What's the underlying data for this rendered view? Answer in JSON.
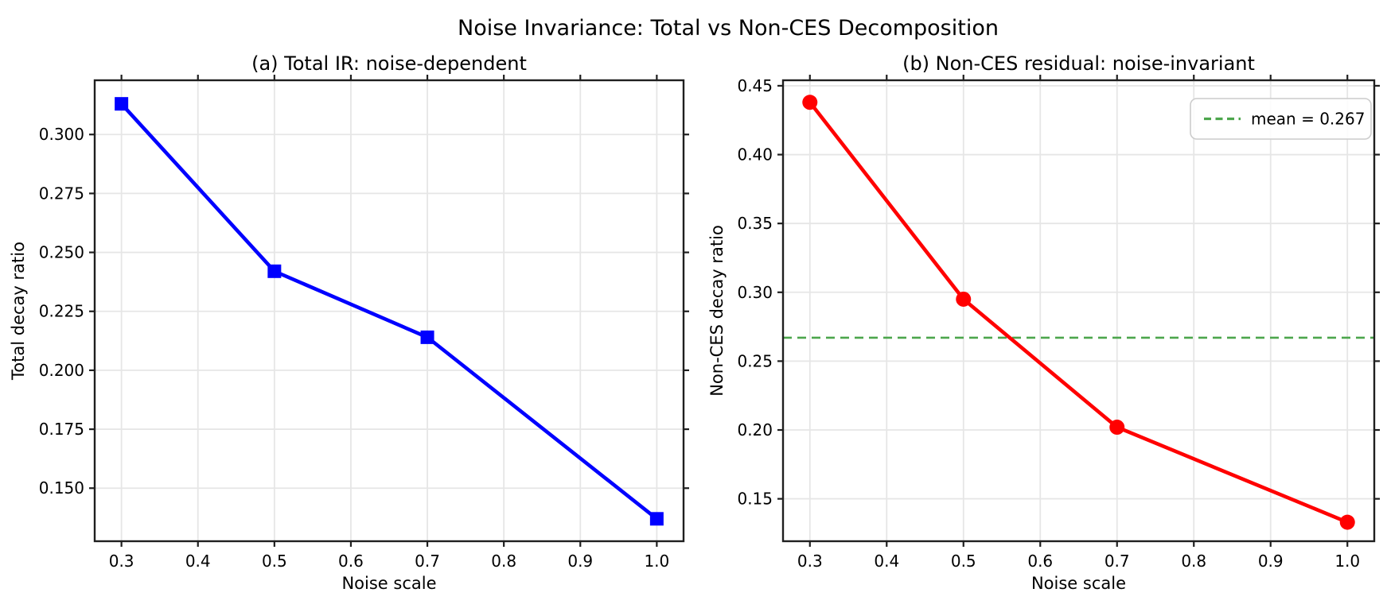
{
  "figure": {
    "title": "Noise Invariance: Total vs Non-CES Decomposition",
    "background": "#ffffff",
    "text_color": "#000000",
    "grid_color": "#e6e6e6",
    "spine_color": "#1f1f1f"
  },
  "chart_data": [
    {
      "type": "line",
      "title": "(a) Total IR: noise-dependent",
      "xlabel": "Noise scale",
      "ylabel": "Total decay ratio",
      "x": [
        0.3,
        0.5,
        0.7,
        1.0
      ],
      "values": [
        0.313,
        0.242,
        0.214,
        0.137
      ],
      "line_color": "#0000ff",
      "marker": "square",
      "xlim": [
        0.265,
        1.035
      ],
      "ylim": [
        0.1275,
        0.323
      ],
      "grid": true,
      "xticks": {
        "values": [
          0.3,
          0.4,
          0.5,
          0.6,
          0.7,
          0.8,
          0.9,
          1.0
        ],
        "labels": [
          "0.3",
          "0.4",
          "0.5",
          "0.6",
          "0.7",
          "0.8",
          "0.9",
          "1.0"
        ]
      },
      "yticks": {
        "values": [
          0.15,
          0.175,
          0.2,
          0.225,
          0.25,
          0.275,
          0.3
        ],
        "labels": [
          "0.150",
          "0.175",
          "0.200",
          "0.225",
          "0.250",
          "0.275",
          "0.300"
        ]
      },
      "mean_line": null,
      "legend": null
    },
    {
      "type": "line",
      "title": "(b) Non-CES residual: noise-invariant",
      "xlabel": "Noise scale",
      "ylabel": "Non-CES decay ratio",
      "x": [
        0.3,
        0.5,
        0.7,
        1.0
      ],
      "values": [
        0.438,
        0.295,
        0.202,
        0.133
      ],
      "line_color": "#ff0000",
      "marker": "circle",
      "xlim": [
        0.265,
        1.035
      ],
      "ylim": [
        0.1192,
        0.454
      ],
      "grid": true,
      "xticks": {
        "values": [
          0.3,
          0.4,
          0.5,
          0.6,
          0.7,
          0.8,
          0.9,
          1.0
        ],
        "labels": [
          "0.3",
          "0.4",
          "0.5",
          "0.6",
          "0.7",
          "0.8",
          "0.9",
          "1.0"
        ]
      },
      "yticks": {
        "values": [
          0.15,
          0.2,
          0.25,
          0.3,
          0.35,
          0.4,
          0.45
        ],
        "labels": [
          "0.15",
          "0.20",
          "0.25",
          "0.30",
          "0.35",
          "0.40",
          "0.45"
        ]
      },
      "mean_line": {
        "value": 0.267,
        "color": "#4ca64c",
        "dashed": true
      },
      "legend": {
        "label": "mean = 0.267",
        "position": "upper-right",
        "swatch_color": "#4ca64c"
      }
    }
  ]
}
